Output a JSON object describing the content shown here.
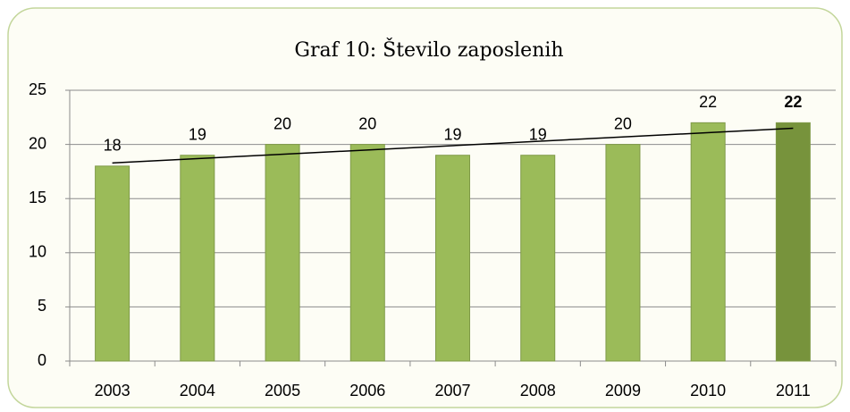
{
  "chart_data": {
    "type": "bar",
    "title": "Graf 10: Število zaposlenih",
    "categories": [
      "2003",
      "2004",
      "2005",
      "2006",
      "2007",
      "2008",
      "2009",
      "2010",
      "2011"
    ],
    "values": [
      18,
      19,
      20,
      20,
      19,
      19,
      20,
      22,
      22
    ],
    "colors": [
      "#9bbb59",
      "#9bbb59",
      "#9bbb59",
      "#9bbb59",
      "#9bbb59",
      "#9bbb59",
      "#9bbb59",
      "#9bbb59",
      "#77933c"
    ],
    "label_bold": [
      false,
      false,
      false,
      false,
      false,
      false,
      false,
      false,
      true
    ],
    "ylim": [
      0,
      25
    ],
    "yticks": [
      0,
      5,
      10,
      15,
      20,
      25
    ],
    "grid": true,
    "trendline": "linear"
  }
}
